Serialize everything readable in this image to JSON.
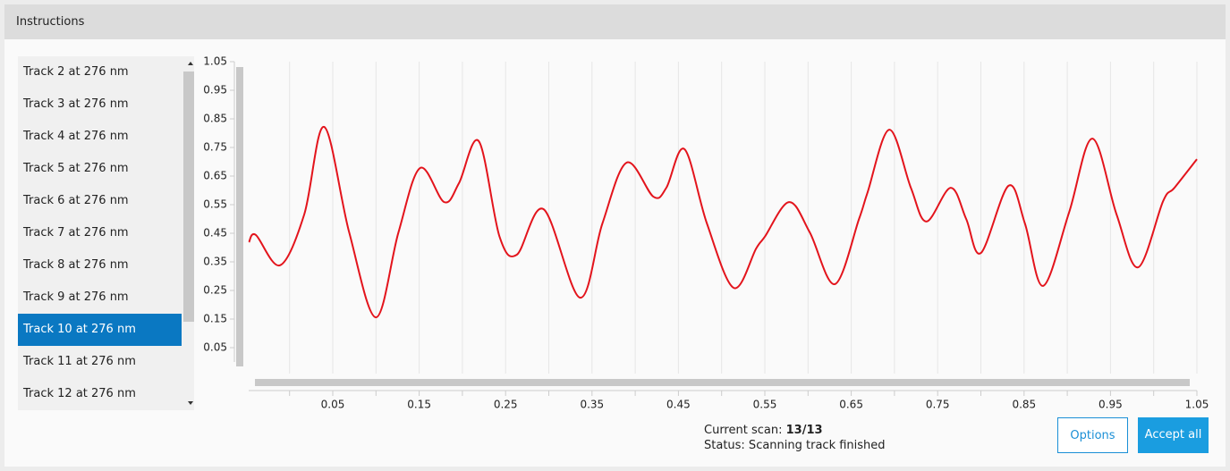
{
  "header": {
    "title": "Instructions"
  },
  "track_list": {
    "items": [
      "Track 2 at 276 nm",
      "Track 3 at 276 nm",
      "Track 4 at 276 nm",
      "Track 5 at 276 nm",
      "Track 6 at 276 nm",
      "Track 7 at 276 nm",
      "Track 8 at 276 nm",
      "Track 9 at 276 nm",
      "Track 10 at 276 nm",
      "Track 11 at 276 nm",
      "Track 12 at 276 nm"
    ],
    "selected": 8
  },
  "chart_data": {
    "type": "line",
    "x": [
      -0.047,
      -0.039,
      -0.011,
      0.017,
      0.04,
      0.069,
      0.1,
      0.126,
      0.151,
      0.179,
      0.196,
      0.219,
      0.243,
      0.263,
      0.294,
      0.336,
      0.362,
      0.39,
      0.421,
      0.436,
      0.457,
      0.483,
      0.514,
      0.54,
      0.55,
      0.578,
      0.602,
      0.631,
      0.659,
      0.669,
      0.694,
      0.719,
      0.737,
      0.765,
      0.783,
      0.8,
      0.832,
      0.851,
      0.872,
      0.902,
      0.929,
      0.957,
      0.982,
      1.011,
      1.024,
      1.05
    ],
    "series": [
      {
        "color": "#e3141c",
        "values": [
          0.419,
          0.444,
          0.338,
          0.516,
          0.822,
          0.453,
          0.156,
          0.453,
          0.678,
          0.559,
          0.625,
          0.772,
          0.438,
          0.375,
          0.534,
          0.225,
          0.484,
          0.697,
          0.578,
          0.609,
          0.744,
          0.484,
          0.259,
          0.397,
          0.438,
          0.559,
          0.453,
          0.272,
          0.5,
          0.594,
          0.812,
          0.609,
          0.491,
          0.609,
          0.5,
          0.381,
          0.616,
          0.484,
          0.266,
          0.522,
          0.781,
          0.516,
          0.331,
          0.563,
          0.609,
          0.709
        ]
      }
    ],
    "xlim": [
      -0.05,
      1.05
    ],
    "ylim": [
      0,
      1.05
    ],
    "xticks": [
      0.05,
      0.15,
      0.25,
      0.35,
      0.45,
      0.55,
      0.65,
      0.75,
      0.85,
      0.95,
      1.05
    ],
    "x_minor_ticks": [
      0,
      0.1,
      0.2,
      0.3,
      0.4,
      0.5,
      0.6,
      0.7,
      0.8,
      0.9,
      1.0
    ],
    "yticks": [
      0.05,
      0.15,
      0.25,
      0.35,
      0.45,
      0.55,
      0.65,
      0.75,
      0.85,
      0.95,
      1.05
    ],
    "grid": true
  },
  "status": {
    "scan_label": "Current scan:",
    "scan_value": "13/13",
    "status_text": "Status: Scanning track finished"
  },
  "buttons": {
    "options": "Options",
    "accept_all": "Accept all"
  }
}
